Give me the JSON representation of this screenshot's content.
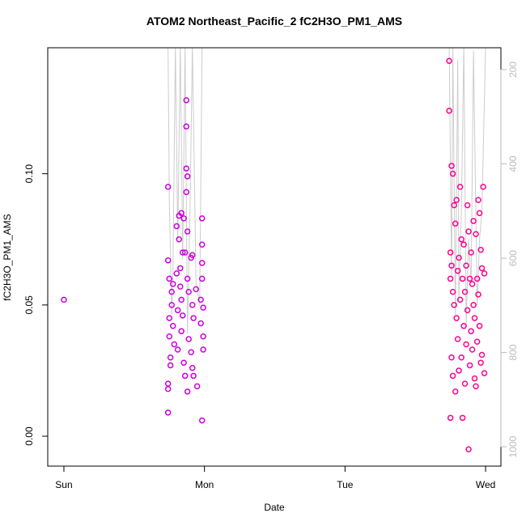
{
  "chart_data": {
    "type": "scatter",
    "title": "ATOM2 Northeast_Pacific_2 fC2H3O_PM1_AMS",
    "xlabel": "Date",
    "ylabel": "fC2H3O_PM1_AMS",
    "xlim": [
      -0.115,
      3.109
    ],
    "xticks": [
      {
        "value": 0,
        "label": "Sun"
      },
      {
        "value": 1,
        "label": "Mon"
      },
      {
        "value": 2,
        "label": "Tue"
      },
      {
        "value": 3,
        "label": "Wed"
      }
    ],
    "ylim": [
      -0.0114,
      0.148
    ],
    "yticks": [
      {
        "value": 0,
        "label": "0.00"
      },
      {
        "value": 0.05,
        "label": "0.05"
      },
      {
        "value": 0.1,
        "label": "0.10"
      }
    ],
    "y2lim": [
      1041,
      153.6
    ],
    "y2ticks": [
      200,
      400,
      600,
      800,
      1000
    ],
    "series": [
      {
        "color": "#cc00dd",
        "x": [
          0,
          0.741,
          0.741,
          0.741,
          0.741,
          0.741,
          0.75,
          0.75,
          0.75,
          0.758,
          0.758,
          0.767,
          0.767,
          0.776,
          0.776,
          0.785,
          0.802,
          0.802,
          0.81,
          0.81,
          0.819,
          0.819,
          0.828,
          0.828,
          0.836,
          0.836,
          0.836,
          0.845,
          0.845,
          0.853,
          0.853,
          0.862,
          0.862,
          0.871,
          0.871,
          0.871,
          0.871,
          0.879,
          0.879,
          0.879,
          0.879,
          0.888,
          0.888,
          0.905,
          0.905,
          0.914,
          0.914,
          0.914,
          0.922,
          0.922,
          0.94,
          0.948,
          0.983,
          0.983,
          0.983,
          0.983,
          0.983,
          0.974,
          0.974,
          0.991,
          0.991,
          0.991
        ],
        "values": [
          0.052,
          0.095,
          0.067,
          0.02,
          0.018,
          0.009,
          0.06,
          0.045,
          0.038,
          0.03,
          0.027,
          0.055,
          0.05,
          0.058,
          0.042,
          0.035,
          0.08,
          0.062,
          0.048,
          0.033,
          0.084,
          0.075,
          0.064,
          0.057,
          0.085,
          0.052,
          0.04,
          0.07,
          0.046,
          0.083,
          0.028,
          0.07,
          0.023,
          0.128,
          0.118,
          0.102,
          0.093,
          0.099,
          0.078,
          0.06,
          0.017,
          0.055,
          0.037,
          0.068,
          0.032,
          0.069,
          0.05,
          0.026,
          0.045,
          0.023,
          0.056,
          0.019,
          0.083,
          0.073,
          0.066,
          0.06,
          0.006,
          0.052,
          0.043,
          0.049,
          0.038,
          0.033
        ]
      },
      {
        "color": "#ff0090",
        "x": [
          2.741,
          2.741,
          2.75,
          2.75,
          2.75,
          2.758,
          2.758,
          2.758,
          2.767,
          2.767,
          2.767,
          2.776,
          2.776,
          2.785,
          2.785,
          2.793,
          2.793,
          2.802,
          2.802,
          2.81,
          2.81,
          2.819,
          2.819,
          2.828,
          2.828,
          2.836,
          2.836,
          2.845,
          2.845,
          2.853,
          2.853,
          2.862,
          2.862,
          2.871,
          2.871,
          2.879,
          2.879,
          2.888,
          2.888,
          2.897,
          2.897,
          2.905,
          2.905,
          2.914,
          2.914,
          2.922,
          2.922,
          2.931,
          2.931,
          2.94,
          2.94,
          2.948,
          2.948,
          2.957,
          2.957,
          2.966,
          2.966,
          2.974,
          2.974,
          2.983,
          2.991,
          2.991
        ],
        "values": [
          0.143,
          0.124,
          0.07,
          0.06,
          0.007,
          0.103,
          0.065,
          0.03,
          0.1,
          0.055,
          0.023,
          0.088,
          0.05,
          0.081,
          0.017,
          0.09,
          0.045,
          0.063,
          0.037,
          0.068,
          0.025,
          0.095,
          0.052,
          0.075,
          0.03,
          0.06,
          0.007,
          0.073,
          0.042,
          0.055,
          0.02,
          0.065,
          0.035,
          0.088,
          0.048,
          0.078,
          -0.005,
          0.06,
          0.027,
          0.07,
          0.04,
          0.058,
          0.033,
          0.082,
          0.05,
          0.045,
          0.022,
          0.077,
          0.019,
          0.06,
          0.036,
          0.09,
          0.054,
          0.085,
          0.042,
          0.071,
          0.028,
          0.064,
          0.031,
          0.095,
          0.062,
          0.024
        ]
      },
      {
        "color": "#cccccc",
        "axis": "y2",
        "x": [
          0.741,
          0.75,
          0.767,
          0.776,
          0.793,
          0.81,
          0.828,
          0.845,
          0.862,
          0.879,
          0.897,
          0.914,
          0.94,
          0.966,
          0.983,
          2.741,
          2.758,
          2.767,
          2.785,
          2.802,
          2.81,
          2.828,
          2.845,
          2.862,
          2.879,
          2.897,
          2.914,
          2.94,
          2.957,
          2.974,
          3.0
        ],
        "values": [
          150,
          480,
          720,
          620,
          150,
          560,
          150,
          600,
          150,
          760,
          500,
          150,
          650,
          700,
          150,
          150,
          640,
          150,
          720,
          180,
          690,
          500,
          150,
          740,
          560,
          650,
          160,
          700,
          560,
          500,
          150
        ]
      }
    ]
  }
}
